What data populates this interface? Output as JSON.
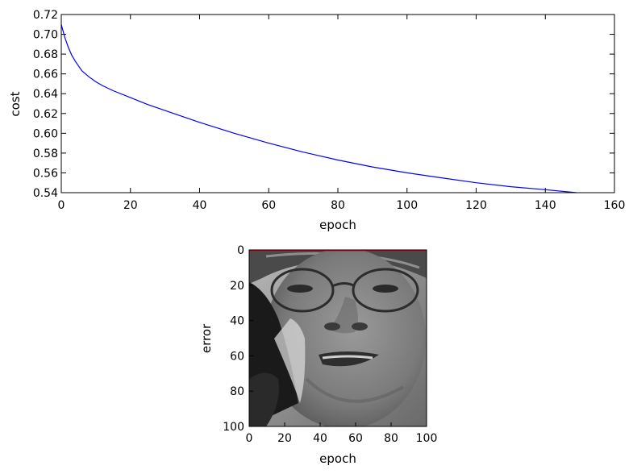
{
  "chart_data": [
    {
      "type": "line",
      "xlabel": "epoch",
      "ylabel": "cost",
      "xlim": [
        0,
        160
      ],
      "ylim": [
        0.54,
        0.72
      ],
      "xticks": [
        "0",
        "20",
        "40",
        "60",
        "80",
        "100",
        "120",
        "140",
        "160"
      ],
      "yticks": [
        "0.54",
        "0.56",
        "0.58",
        "0.60",
        "0.62",
        "0.64",
        "0.66",
        "0.68",
        "0.70",
        "0.72"
      ],
      "grid": false,
      "line_color": "#0000ff",
      "series": [
        {
          "x": [
            0,
            1,
            2,
            3,
            4,
            5,
            6,
            8,
            10,
            12,
            15,
            20,
            25,
            30,
            40,
            50,
            60,
            70,
            80,
            90,
            100,
            110,
            120,
            130,
            140,
            149
          ],
          "y": [
            0.71,
            0.697,
            0.687,
            0.679,
            0.673,
            0.668,
            0.663,
            0.657,
            0.652,
            0.648,
            0.643,
            0.636,
            0.629,
            0.623,
            0.611,
            0.6,
            0.59,
            0.581,
            0.573,
            0.566,
            0.56,
            0.555,
            0.55,
            0.546,
            0.543,
            0.54
          ]
        }
      ]
    },
    {
      "type": "heatmap",
      "xlabel": "epoch",
      "ylabel": "error",
      "xlim": [
        0,
        100
      ],
      "ylim": [
        100,
        0
      ],
      "xticks": [
        "0",
        "20",
        "40",
        "60",
        "80",
        "100"
      ],
      "yticks": [
        "0",
        "20",
        "40",
        "60",
        "80",
        "100"
      ],
      "colormap": "grayscale",
      "image_content": "grayscale face photograph",
      "top_row_color": "#d0021b"
    }
  ]
}
